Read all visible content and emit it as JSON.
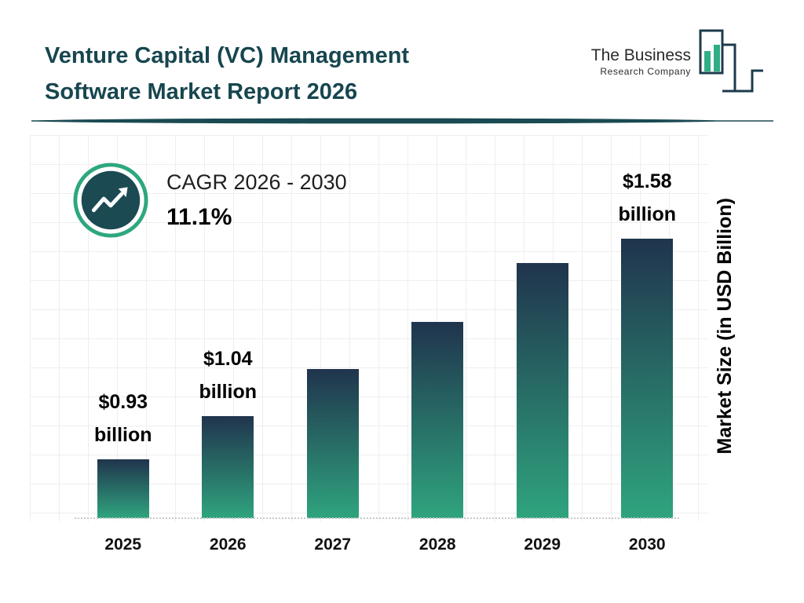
{
  "header": {
    "title_line1": "Venture Capital (VC) Management",
    "title_line2": "Software Market Report 2026",
    "logo": {
      "name_line1": "The Business",
      "name_line2": "Research Company"
    }
  },
  "cagr": {
    "label": "CAGR 2026 - 2030",
    "value": "11.1%"
  },
  "chart_data": {
    "type": "bar",
    "title": "Venture Capital (VC) Management Software Market Report 2026",
    "categories": [
      "2025",
      "2026",
      "2027",
      "2028",
      "2029",
      "2030"
    ],
    "values": [
      0.93,
      1.04,
      1.16,
      1.28,
      1.43,
      1.58
    ],
    "bar_labels": [
      {
        "amount": "$0.93",
        "unit": "billion"
      },
      {
        "amount": "$1.04",
        "unit": "billion"
      },
      null,
      null,
      null,
      {
        "amount": "$1.58",
        "unit": "billion"
      }
    ],
    "xlabel": "",
    "ylabel": "Market Size (in USD Billion)",
    "ylim": [
      0.78,
      1.68
    ],
    "grid": true,
    "legend": false,
    "bar_gradient_top": "#20344d",
    "bar_gradient_bottom": "#2fa47e"
  },
  "colors": {
    "title": "#17464f",
    "accent_green": "#2fae85",
    "dark_navy": "#1c3b4d",
    "ring_green": "#2da77f",
    "icon_circle": "#1b4a52"
  }
}
